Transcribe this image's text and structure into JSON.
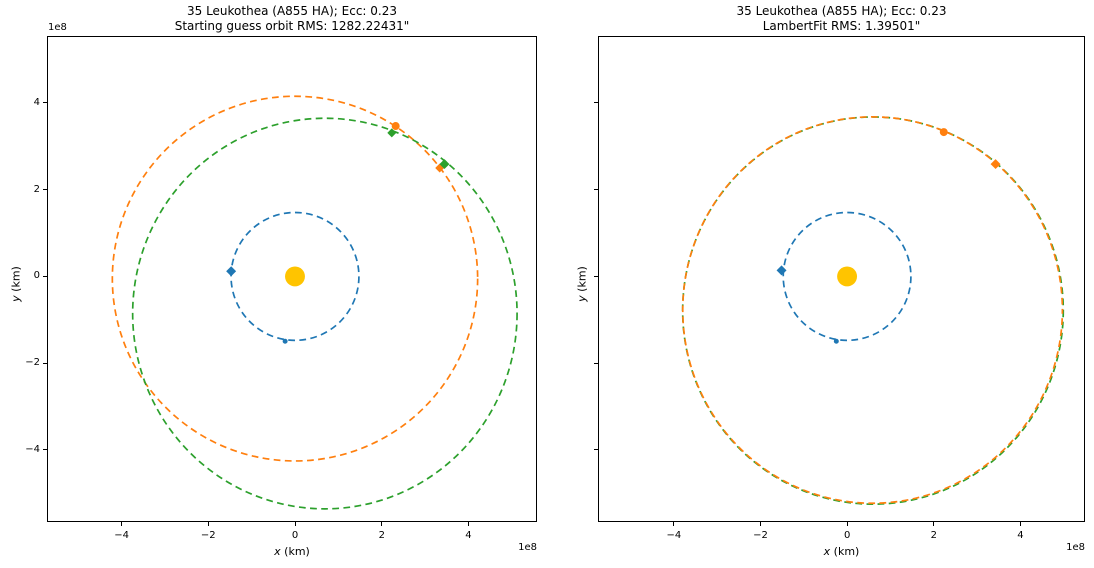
{
  "figure": {
    "background": "#ffffff"
  },
  "colors": {
    "earth_blue": "#1f77b4",
    "guess_orange": "#ff7f0e",
    "fit_green": "#2ca02c",
    "sun_gold": "#ffc400",
    "spine": "#000000"
  },
  "chart_data": [
    {
      "type": "line",
      "title": "35 Leukothea (A855 HA); Ecc: 0.23",
      "subtitle": "Starting guess orbit RMS: 1282.22431\"",
      "xlabel_var": "x",
      "xlabel_rest": " (km)",
      "ylabel_var": "y",
      "ylabel_rest": " (km)",
      "x_offset_label": "1e8",
      "y_offset_label": "1e8",
      "units": "1e8 km",
      "grid": false,
      "legend": null,
      "xlim": [
        -5.72,
        5.58
      ],
      "ylim": [
        -5.66,
        5.54
      ],
      "x_ticks": [
        {
          "v": -4,
          "label": "−4"
        },
        {
          "v": -2,
          "label": "−2"
        },
        {
          "v": 0,
          "label": "0"
        },
        {
          "v": 2,
          "label": "2"
        },
        {
          "v": 4,
          "label": "4"
        }
      ],
      "y_ticks": [
        {
          "v": 4,
          "label": "4"
        },
        {
          "v": 2,
          "label": "2"
        },
        {
          "v": 0,
          "label": "0"
        },
        {
          "v": -2,
          "label": "−2"
        },
        {
          "v": -4,
          "label": "−4"
        }
      ],
      "show_y_tick_labels": true,
      "series": [
        {
          "name": "earth-orbit",
          "kind": "dashed-ellipse",
          "color": "#1f77b4",
          "center": [
            0,
            0
          ],
          "rx": 1.48,
          "ry": 1.48,
          "dash_offset": 0
        },
        {
          "name": "starting-guess-orbit",
          "kind": "dashed-ellipse",
          "color": "#ff7f0e",
          "center": [
            0,
            -0.05
          ],
          "rx": 4.23,
          "ry": 4.22,
          "dash_offset": 0
        },
        {
          "name": "reference-orbit",
          "kind": "dashed-ellipse",
          "color": "#2ca02c",
          "center": [
            0.69,
            -0.86
          ],
          "rx": 4.45,
          "ry": 4.52,
          "dash_offset": 0
        }
      ],
      "sun": {
        "x": 0,
        "y": 0,
        "color": "#ffc400",
        "radius_px": 10
      },
      "markers": [
        {
          "name": "earth-obs1-marker",
          "x": -1.48,
          "y": 0.12,
          "shape": "diamond",
          "color": "#1f77b4",
          "size": 5
        },
        {
          "name": "earth-obs2-marker",
          "x": -0.23,
          "y": -1.5,
          "shape": "circle",
          "color": "#1f77b4",
          "size": 2.5
        },
        {
          "name": "guess-obs1-marker",
          "x": 2.33,
          "y": 3.48,
          "shape": "circle",
          "color": "#ff7f0e",
          "size": 4
        },
        {
          "name": "guess-obs2-marker",
          "x": 3.35,
          "y": 2.51,
          "shape": "diamond",
          "color": "#ff7f0e",
          "size": 4.5
        },
        {
          "name": "reference-obs1-marker",
          "x": 2.24,
          "y": 3.32,
          "shape": "diamond",
          "color": "#2ca02c",
          "size": 4.5
        },
        {
          "name": "reference-obs2-marker",
          "x": 3.46,
          "y": 2.6,
          "shape": "diamond",
          "color": "#2ca02c",
          "size": 5
        }
      ]
    },
    {
      "type": "line",
      "title": "35 Leukothea (A855 HA); Ecc: 0.23",
      "subtitle": "LambertFit RMS: 1.39501\"",
      "xlabel_var": "x",
      "xlabel_rest": " (km)",
      "ylabel_var": "y",
      "ylabel_rest": " (km)",
      "x_offset_label": "1e8",
      "y_offset_label": "",
      "units": "1e8 km",
      "grid": false,
      "legend": null,
      "xlim": [
        -5.75,
        5.49
      ],
      "ylim": [
        -5.66,
        5.54
      ],
      "x_ticks": [
        {
          "v": -4,
          "label": "−4"
        },
        {
          "v": -2,
          "label": "−2"
        },
        {
          "v": 0,
          "label": "0"
        },
        {
          "v": 2,
          "label": "2"
        },
        {
          "v": 4,
          "label": "4"
        }
      ],
      "y_ticks": [
        {
          "v": 4,
          "label": ""
        },
        {
          "v": 2,
          "label": ""
        },
        {
          "v": 0,
          "label": ""
        },
        {
          "v": -2,
          "label": ""
        },
        {
          "v": -4,
          "label": ""
        }
      ],
      "show_y_tick_labels": false,
      "series": [
        {
          "name": "reference-orbit",
          "kind": "dashed-ellipse",
          "color": "#2ca02c",
          "center": [
            0.6,
            -0.79
          ],
          "rx": 4.41,
          "ry": 4.48,
          "dash_offset": 0
        },
        {
          "name": "lambert-fit-orbit",
          "kind": "dashed-ellipse",
          "color": "#ff7f0e",
          "center": [
            0.59,
            -0.78
          ],
          "rx": 4.4,
          "ry": 4.47,
          "dash_offset": 3
        }
      ],
      "sun": {
        "x": 0,
        "y": 0,
        "color": "#ffc400",
        "radius_px": 10
      },
      "markers": [
        {
          "name": "earth-obs1-marker",
          "x": -1.52,
          "y": 0.14,
          "shape": "diamond",
          "color": "#1f77b4",
          "size": 5
        },
        {
          "name": "earth-obs2-marker",
          "x": -0.25,
          "y": -1.5,
          "shape": "circle",
          "color": "#1f77b4",
          "size": 2.5
        },
        {
          "name": "fit-obs1-marker",
          "x": 2.24,
          "y": 3.34,
          "shape": "circle",
          "color": "#ff7f0e",
          "size": 4
        },
        {
          "name": "fit-obs2-marker",
          "x": 3.44,
          "y": 2.6,
          "shape": "diamond",
          "color": "#ff7f0e",
          "size": 5
        }
      ]
    }
  ],
  "extra_series_right": {
    "earth_orbit": {
      "name": "earth-orbit",
      "color": "#1f77b4",
      "center": [
        0,
        0
      ],
      "rx": 1.48,
      "ry": 1.48
    }
  }
}
